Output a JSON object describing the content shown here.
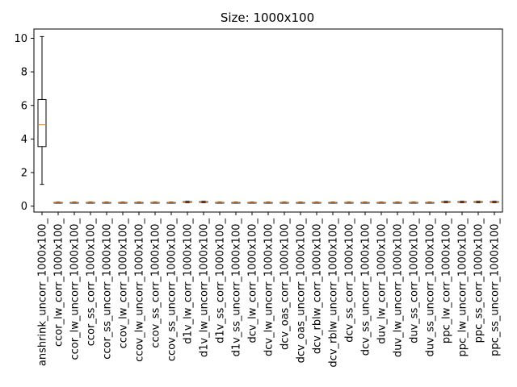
{
  "chart_data": {
    "type": "box",
    "title": "Size: 1000x100",
    "xlabel": "",
    "ylabel": "",
    "ylim": [
      -0.35,
      10.55
    ],
    "yticks": [
      0,
      2,
      4,
      6,
      8,
      10
    ],
    "grid": false,
    "colors": {
      "box": "#000000",
      "median": "#ff7f0e",
      "axes": "#000000"
    },
    "categories": [
      "anshrink_uncorr_1000x100_",
      "ccor_lw_corr_1000x100_",
      "ccor_lw_uncorr_1000x100_",
      "ccor_ss_corr_1000x100_",
      "ccor_ss_uncorr_1000x100_",
      "ccov_lw_corr_1000x100_",
      "ccov_lw_uncorr_1000x100_",
      "ccov_ss_corr_1000x100_",
      "ccov_ss_uncorr_1000x100_",
      "d1v_lw_corr_1000x100_",
      "d1v_lw_uncorr_1000x100_",
      "d1v_ss_corr_1000x100_",
      "d1v_ss_uncorr_1000x100_",
      "dcv_lw_corr_1000x100_",
      "dcv_lw_uncorr_1000x100_",
      "dcv_oas_corr_1000x100_",
      "dcv_oas_uncorr_1000x100_",
      "dcv_rblw_corr_1000x100_",
      "dcv_rblw_uncorr_1000x100_",
      "dcv_ss_corr_1000x100_",
      "dcv_ss_uncorr_1000x100_",
      "duv_lw_corr_1000x100_",
      "duv_lw_uncorr_1000x100_",
      "duv_ss_corr_1000x100_",
      "duv_ss_uncorr_1000x100_",
      "ppc_lw_corr_1000x100_",
      "ppc_lw_uncorr_1000x100_",
      "ppc_ss_corr_1000x100_",
      "ppc_ss_uncorr_1000x100_"
    ],
    "boxes": [
      {
        "whisker_low": 1.3,
        "q1": 3.55,
        "median": 4.85,
        "q3": 6.35,
        "whisker_high": 10.1
      },
      {
        "whisker_low": 0.18,
        "q1": 0.2,
        "median": 0.21,
        "q3": 0.22,
        "whisker_high": 0.24
      },
      {
        "whisker_low": 0.18,
        "q1": 0.2,
        "median": 0.21,
        "q3": 0.22,
        "whisker_high": 0.24
      },
      {
        "whisker_low": 0.18,
        "q1": 0.2,
        "median": 0.21,
        "q3": 0.22,
        "whisker_high": 0.24
      },
      {
        "whisker_low": 0.18,
        "q1": 0.2,
        "median": 0.21,
        "q3": 0.22,
        "whisker_high": 0.24
      },
      {
        "whisker_low": 0.18,
        "q1": 0.2,
        "median": 0.21,
        "q3": 0.22,
        "whisker_high": 0.24
      },
      {
        "whisker_low": 0.18,
        "q1": 0.2,
        "median": 0.21,
        "q3": 0.22,
        "whisker_high": 0.24
      },
      {
        "whisker_low": 0.18,
        "q1": 0.2,
        "median": 0.21,
        "q3": 0.22,
        "whisker_high": 0.24
      },
      {
        "whisker_low": 0.18,
        "q1": 0.2,
        "median": 0.21,
        "q3": 0.22,
        "whisker_high": 0.24
      },
      {
        "whisker_low": 0.2,
        "q1": 0.23,
        "median": 0.25,
        "q3": 0.27,
        "whisker_high": 0.3
      },
      {
        "whisker_low": 0.2,
        "q1": 0.23,
        "median": 0.25,
        "q3": 0.27,
        "whisker_high": 0.3
      },
      {
        "whisker_low": 0.18,
        "q1": 0.2,
        "median": 0.21,
        "q3": 0.22,
        "whisker_high": 0.24
      },
      {
        "whisker_low": 0.18,
        "q1": 0.2,
        "median": 0.21,
        "q3": 0.22,
        "whisker_high": 0.24
      },
      {
        "whisker_low": 0.18,
        "q1": 0.2,
        "median": 0.21,
        "q3": 0.22,
        "whisker_high": 0.24
      },
      {
        "whisker_low": 0.18,
        "q1": 0.2,
        "median": 0.21,
        "q3": 0.22,
        "whisker_high": 0.24
      },
      {
        "whisker_low": 0.18,
        "q1": 0.2,
        "median": 0.21,
        "q3": 0.22,
        "whisker_high": 0.24
      },
      {
        "whisker_low": 0.18,
        "q1": 0.2,
        "median": 0.21,
        "q3": 0.22,
        "whisker_high": 0.24
      },
      {
        "whisker_low": 0.18,
        "q1": 0.2,
        "median": 0.21,
        "q3": 0.22,
        "whisker_high": 0.24
      },
      {
        "whisker_low": 0.18,
        "q1": 0.2,
        "median": 0.21,
        "q3": 0.22,
        "whisker_high": 0.24
      },
      {
        "whisker_low": 0.18,
        "q1": 0.2,
        "median": 0.21,
        "q3": 0.22,
        "whisker_high": 0.24
      },
      {
        "whisker_low": 0.18,
        "q1": 0.2,
        "median": 0.21,
        "q3": 0.22,
        "whisker_high": 0.24
      },
      {
        "whisker_low": 0.18,
        "q1": 0.2,
        "median": 0.21,
        "q3": 0.22,
        "whisker_high": 0.24
      },
      {
        "whisker_low": 0.18,
        "q1": 0.2,
        "median": 0.21,
        "q3": 0.22,
        "whisker_high": 0.24
      },
      {
        "whisker_low": 0.18,
        "q1": 0.2,
        "median": 0.21,
        "q3": 0.22,
        "whisker_high": 0.24
      },
      {
        "whisker_low": 0.18,
        "q1": 0.2,
        "median": 0.21,
        "q3": 0.22,
        "whisker_high": 0.24
      },
      {
        "whisker_low": 0.2,
        "q1": 0.23,
        "median": 0.25,
        "q3": 0.27,
        "whisker_high": 0.3
      },
      {
        "whisker_low": 0.2,
        "q1": 0.23,
        "median": 0.25,
        "q3": 0.27,
        "whisker_high": 0.3
      },
      {
        "whisker_low": 0.2,
        "q1": 0.23,
        "median": 0.25,
        "q3": 0.27,
        "whisker_high": 0.3
      },
      {
        "whisker_low": 0.2,
        "q1": 0.23,
        "median": 0.25,
        "q3": 0.27,
        "whisker_high": 0.3
      }
    ]
  }
}
